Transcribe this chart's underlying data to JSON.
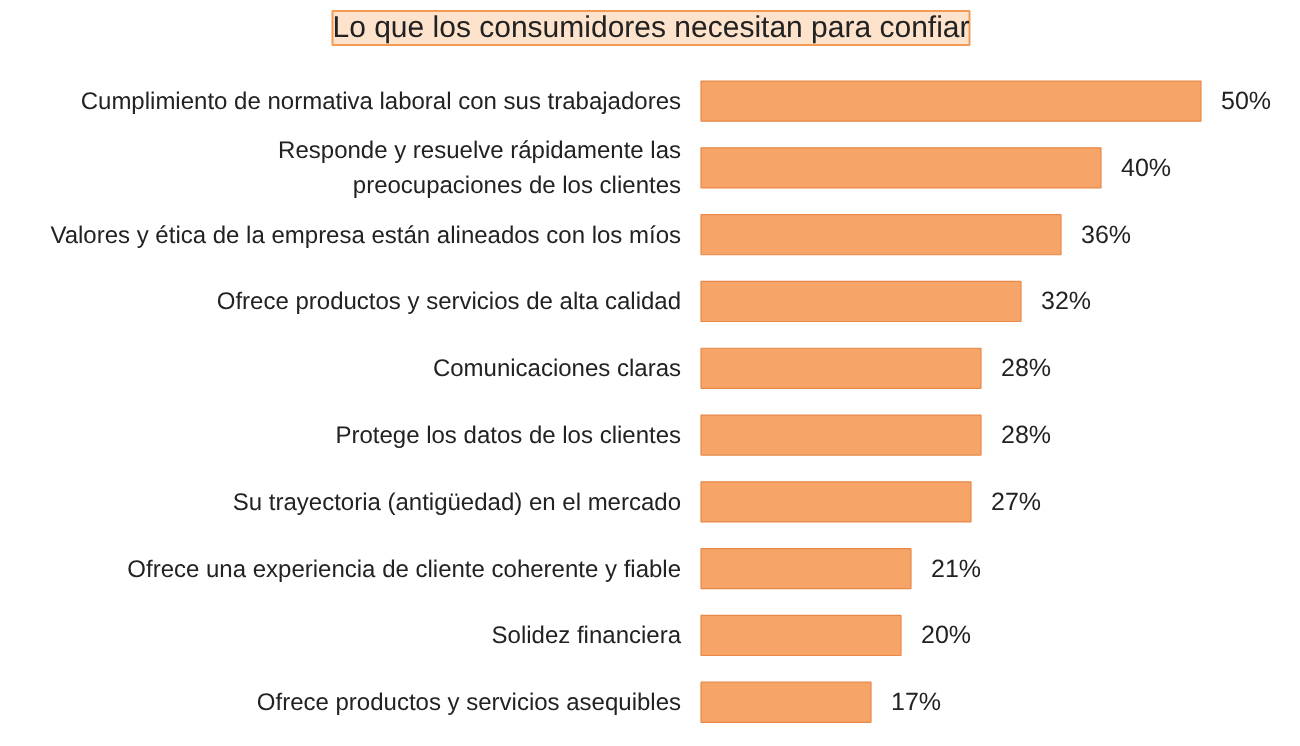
{
  "chart_data": {
    "type": "bar",
    "orientation": "horizontal",
    "title": "Lo que los consumidores necesitan para confiar",
    "categories": [
      "Cumplimiento de normativa laboral con sus trabajadores",
      "Responde y resuelve rápidamente las\npreocupaciones de los clientes",
      "Valores y ética de la empresa están alineados con los míos",
      "Ofrece productos y servicios de alta calidad",
      "Comunicaciones claras",
      "Protege los datos de los clientes",
      "Su trayectoria (antigüedad) en el mercado",
      "Ofrece una experiencia de cliente coherente y fiable",
      "Solidez financiera",
      "Ofrece productos y servicios asequibles"
    ],
    "values": [
      50,
      40,
      36,
      32,
      28,
      28,
      27,
      21,
      20,
      17
    ],
    "color": "#f7a468",
    "data_labels": true,
    "value_labels": [
      "50%",
      "40%",
      "36%",
      "32%",
      "28%",
      "28%",
      "27%",
      "21%",
      "20%",
      "17%"
    ],
    "grid": false
  }
}
